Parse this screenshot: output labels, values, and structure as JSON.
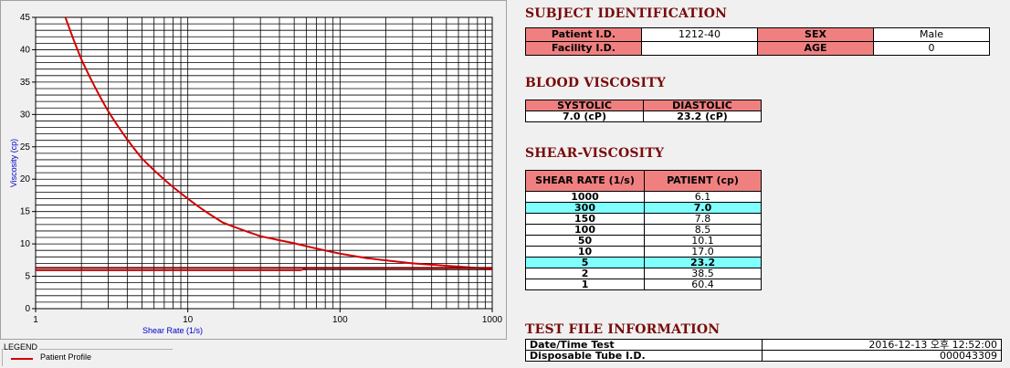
{
  "chart": {
    "ylabel": "Viscosity (cp)",
    "xlabel": "Shear Rate (1/s)",
    "legend_title": "LEGEND",
    "legend_series": "Patient Profile",
    "colors": {
      "curve": "#d40000",
      "reference": "#d40000",
      "dark_line": "#7a0000",
      "grid": "#000000"
    }
  },
  "chart_data": {
    "type": "line",
    "x_scale": "log",
    "xlim": [
      1,
      1000
    ],
    "ylim": [
      0,
      45
    ],
    "x_ticks": [
      "1",
      "10",
      "100",
      "1000"
    ],
    "y_ticks": [
      "0",
      "5",
      "10",
      "15",
      "20",
      "25",
      "30",
      "35",
      "40",
      "45"
    ],
    "grid": true,
    "series": [
      {
        "name": "Patient Profile",
        "x": [
          1.57,
          2,
          3,
          5,
          10,
          17,
          30,
          50,
          100,
          150,
          300,
          600,
          1000
        ],
        "y": [
          45,
          38.5,
          30.5,
          23.2,
          17.0,
          13.3,
          11.2,
          10.1,
          8.5,
          7.8,
          7.0,
          6.5,
          6.1
        ]
      },
      {
        "x": [
          1,
          55,
          60,
          1000
        ],
        "y": [
          5.9,
          5.9,
          6.2,
          6.2
        ]
      },
      {
        "x": [
          1,
          1000
        ],
        "y": [
          6.3,
          6.3
        ]
      }
    ]
  },
  "subject": {
    "title": "SUBJECT IDENTIFICATION",
    "patient_id_label": "Patient I.D.",
    "patient_id": "1212-40",
    "sex_label": "SEX",
    "sex": "Male",
    "facility_id_label": "Facility I.D.",
    "facility_id": "",
    "age_label": "AGE",
    "age": "0"
  },
  "blood_viscosity": {
    "title": "BLOOD VISCOSITY",
    "systolic_label": "SYSTOLIC",
    "diastolic_label": "DIASTOLIC",
    "systolic": "7.0 (cP)",
    "diastolic": "23.2 (cP)"
  },
  "shear_viscosity": {
    "title": "SHEAR-VISCOSITY",
    "col_rate": "SHEAR RATE (1/s)",
    "col_patient": "PATIENT (cp)",
    "rows": [
      {
        "rate": "1000",
        "value": "6.1"
      },
      {
        "rate": "300",
        "value": "7.0"
      },
      {
        "rate": "150",
        "value": "7.8"
      },
      {
        "rate": "100",
        "value": "8.5"
      },
      {
        "rate": "50",
        "value": "10.1"
      },
      {
        "rate": "10",
        "value": "17.0"
      },
      {
        "rate": "5",
        "value": "23.2"
      },
      {
        "rate": "2",
        "value": "38.5"
      },
      {
        "rate": "1",
        "value": "60.4"
      }
    ]
  },
  "test_file": {
    "title": "TEST FILE INFORMATION",
    "datetime_label": "Date/Time Test",
    "datetime": "2016-12-13  오후 12:52:00",
    "tube_label": "Disposable Tube I.D.",
    "tube_id": "000043309"
  }
}
